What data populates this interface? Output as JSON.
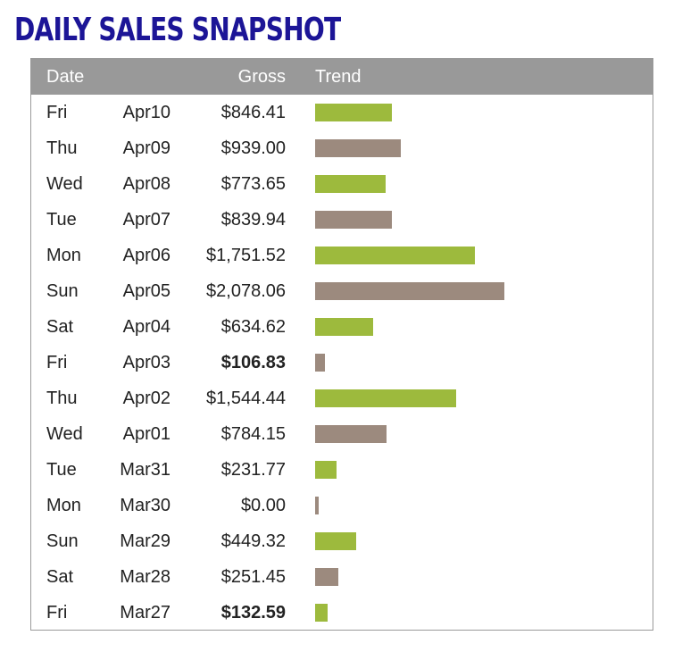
{
  "title": "DAILY SALES SNAPSHOT",
  "header": {
    "date": "Date",
    "gross": "Gross",
    "trend": "Trend"
  },
  "colors": {
    "title": "#1c1597",
    "header_bg": "#999999",
    "bar_green": "#9dba3d",
    "bar_taupe": "#9c8a7e"
  },
  "max_gross": 2078.06,
  "rows": [
    {
      "day": "Fri",
      "date": "Apr10",
      "gross": "$846.41",
      "value": 846.41,
      "bold": false,
      "color": "green"
    },
    {
      "day": "Thu",
      "date": "Apr09",
      "gross": "$939.00",
      "value": 939.0,
      "bold": false,
      "color": "taupe"
    },
    {
      "day": "Wed",
      "date": "Apr08",
      "gross": "$773.65",
      "value": 773.65,
      "bold": false,
      "color": "green"
    },
    {
      "day": "Tue",
      "date": "Apr07",
      "gross": "$839.94",
      "value": 839.94,
      "bold": false,
      "color": "taupe"
    },
    {
      "day": "Mon",
      "date": "Apr06",
      "gross": "$1,751.52",
      "value": 1751.52,
      "bold": false,
      "color": "green"
    },
    {
      "day": "Sun",
      "date": "Apr05",
      "gross": "$2,078.06",
      "value": 2078.06,
      "bold": false,
      "color": "taupe"
    },
    {
      "day": "Sat",
      "date": "Apr04",
      "gross": "$634.62",
      "value": 634.62,
      "bold": false,
      "color": "green"
    },
    {
      "day": "Fri",
      "date": "Apr03",
      "gross": "$106.83",
      "value": 106.83,
      "bold": true,
      "color": "taupe"
    },
    {
      "day": "Thu",
      "date": "Apr02",
      "gross": "$1,544.44",
      "value": 1544.44,
      "bold": false,
      "color": "green"
    },
    {
      "day": "Wed",
      "date": "Apr01",
      "gross": "$784.15",
      "value": 784.15,
      "bold": false,
      "color": "taupe"
    },
    {
      "day": "Tue",
      "date": "Mar31",
      "gross": "$231.77",
      "value": 231.77,
      "bold": false,
      "color": "green"
    },
    {
      "day": "Mon",
      "date": "Mar30",
      "gross": "$0.00",
      "value": 0.0,
      "bold": false,
      "color": "taupe"
    },
    {
      "day": "Sun",
      "date": "Mar29",
      "gross": "$449.32",
      "value": 449.32,
      "bold": false,
      "color": "green"
    },
    {
      "day": "Sat",
      "date": "Mar28",
      "gross": "$251.45",
      "value": 251.45,
      "bold": false,
      "color": "taupe"
    },
    {
      "day": "Fri",
      "date": "Mar27",
      "gross": "$132.59",
      "value": 132.59,
      "bold": true,
      "color": "green"
    }
  ]
}
